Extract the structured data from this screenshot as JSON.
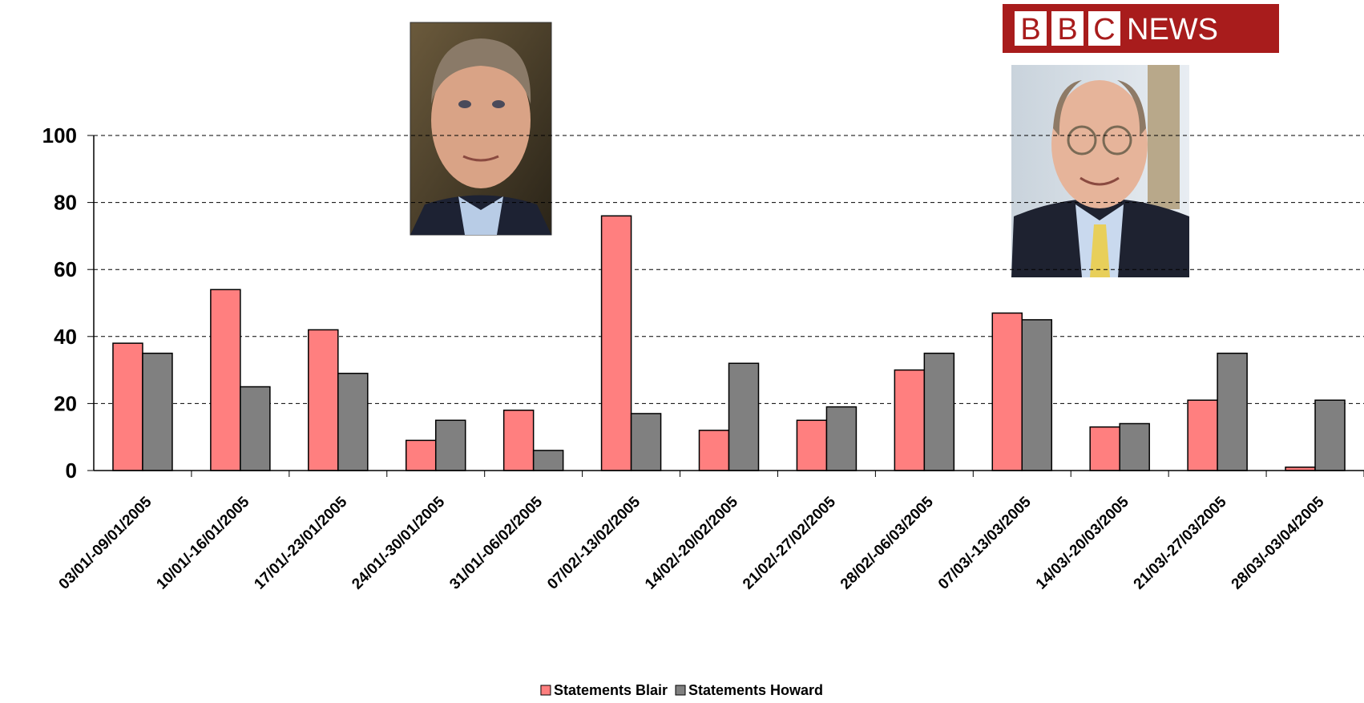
{
  "chart_data": {
    "type": "bar",
    "categories": [
      "03/01/-09/01/2005",
      "10/01/-16/01/2005",
      "17/01/-23/01/2005",
      "24/01/-30/01/2005",
      "31/01/-06/02/2005",
      "07/02/-13/02/2005",
      "14/02/-20/02/2005",
      "21/02/-27/02/2005",
      "28/02/-06/03/2005",
      "07/03/-13/03/2005",
      "14/03/-20/03/2005",
      "21/03/-27/03/2005",
      "28/03/-03/04/2005"
    ],
    "series": [
      {
        "name": "Statements Blair",
        "color": "#ff7f7f",
        "values": [
          38,
          54,
          42,
          9,
          18,
          76,
          12,
          15,
          30,
          47,
          13,
          21,
          1
        ]
      },
      {
        "name": "Statements Howard",
        "color": "#808080",
        "values": [
          35,
          25,
          29,
          15,
          6,
          17,
          32,
          19,
          35,
          45,
          14,
          35,
          21
        ]
      }
    ],
    "ylim": [
      0,
      100
    ],
    "yticks": [
      0,
      20,
      40,
      60,
      80,
      100
    ],
    "grid": true,
    "legend": "bottom"
  },
  "logo": {
    "letters": [
      "B",
      "B",
      "C"
    ],
    "word": "NEWS"
  }
}
